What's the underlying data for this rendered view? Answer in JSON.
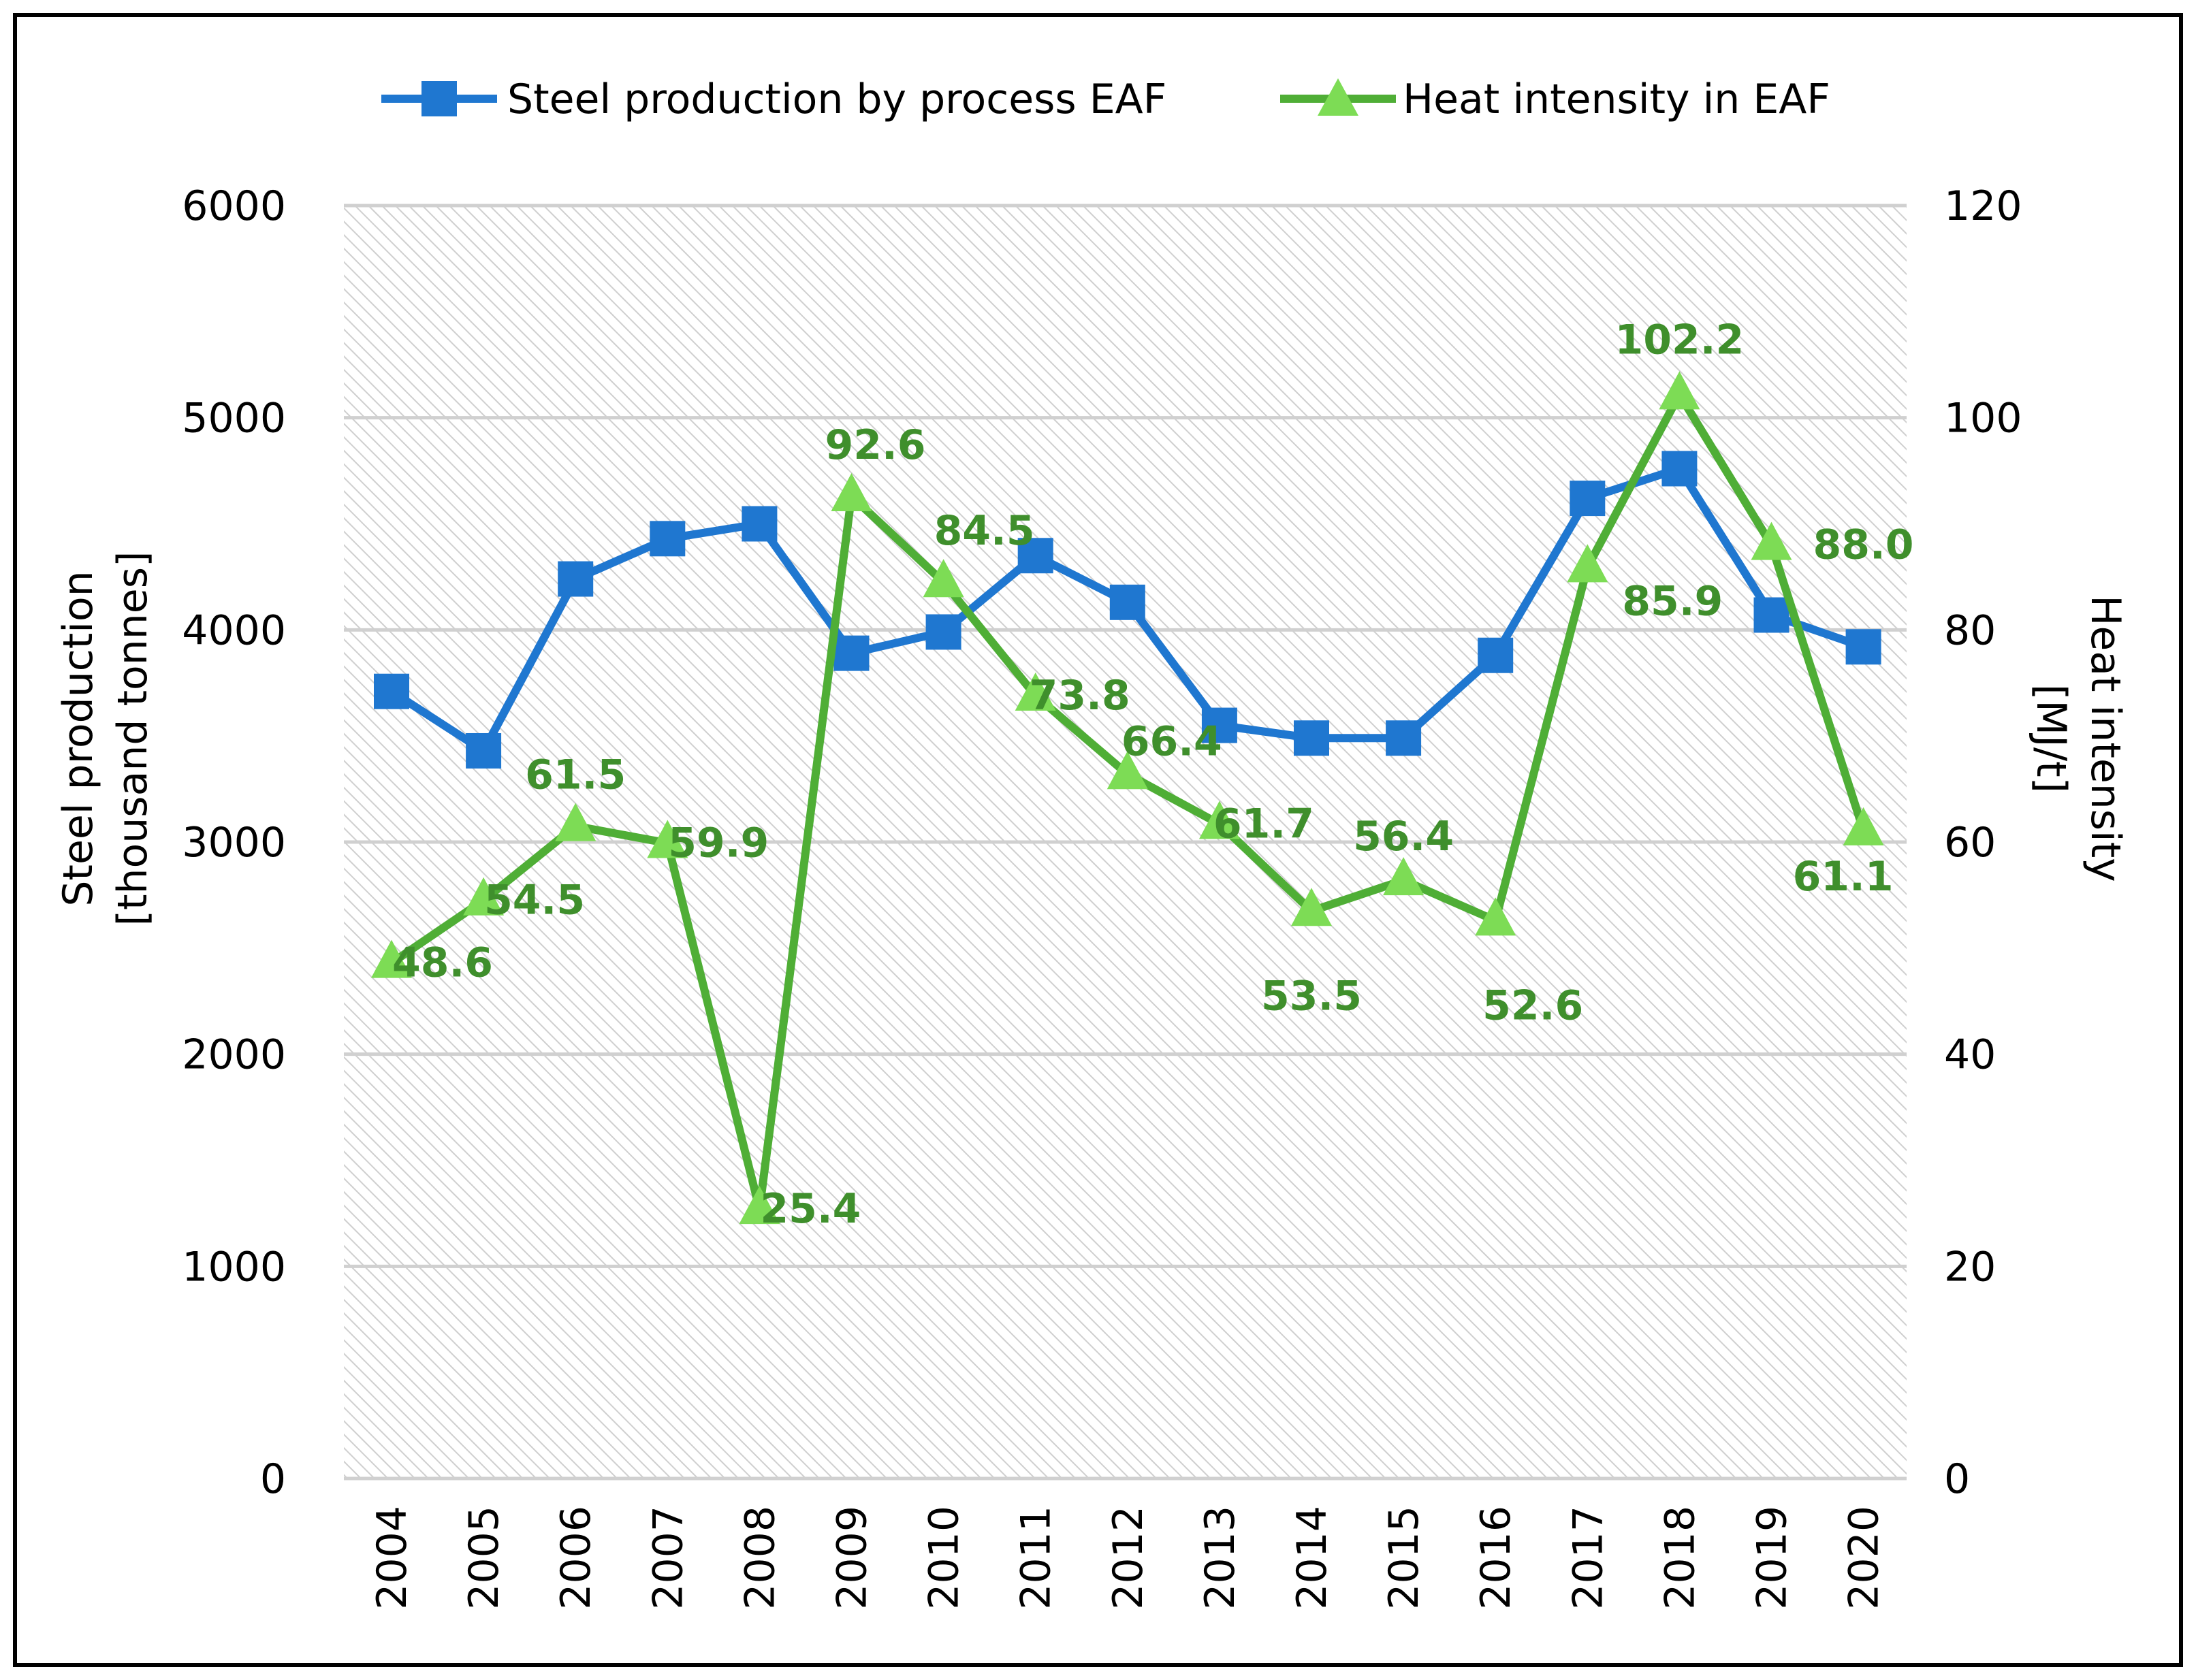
{
  "chart_data": {
    "type": "line",
    "title": "",
    "categories": [
      "2004",
      "2005",
      "2006",
      "2007",
      "2008",
      "2009",
      "2010",
      "2011",
      "2012",
      "2013",
      "2014",
      "2015",
      "2016",
      "2017",
      "2018",
      "2019",
      "2020"
    ],
    "series": [
      {
        "name": "Steel production by process EAF",
        "axis": "left",
        "color": "#1f77d0",
        "marker": "square",
        "values": [
          3710,
          3430,
          4240,
          4430,
          4500,
          3890,
          3990,
          4350,
          4130,
          3550,
          3490,
          3490,
          3880,
          4620,
          4760,
          4070,
          3920
        ]
      },
      {
        "name": "Heat intensity in EAF",
        "axis": "right",
        "color": "#4fae36",
        "marker": "triangle",
        "marker_color": "#7ddc55",
        "values": [
          48.6,
          54.5,
          61.5,
          59.9,
          25.4,
          92.6,
          84.5,
          73.8,
          66.4,
          61.7,
          53.5,
          56.4,
          52.6,
          85.9,
          102.2,
          88.0,
          61.1
        ],
        "value_labels": [
          "48.6",
          "54.5",
          "61.5",
          "59.9",
          "25.4",
          "92.6",
          "84.5",
          "73.8",
          "66.4",
          "61.7",
          "53.5",
          "56.4",
          "52.6",
          "85.9",
          "102.2",
          "88.0",
          "61.1"
        ],
        "label_color": "#3f8f2c"
      }
    ],
    "y_left": {
      "label_line1": "Steel production",
      "label_line2": "[thousand tonnes]",
      "range": [
        0,
        6000
      ],
      "ticks": [
        "0",
        "1000",
        "2000",
        "3000",
        "4000",
        "5000",
        "6000"
      ]
    },
    "y_right": {
      "label_line1": "Heat intensity",
      "label_line2": "[MJ/t]",
      "range": [
        0,
        120
      ],
      "ticks": [
        "0",
        "20",
        "40",
        "60",
        "80",
        "100",
        "120"
      ]
    },
    "grid": true,
    "legend_position": "top"
  }
}
